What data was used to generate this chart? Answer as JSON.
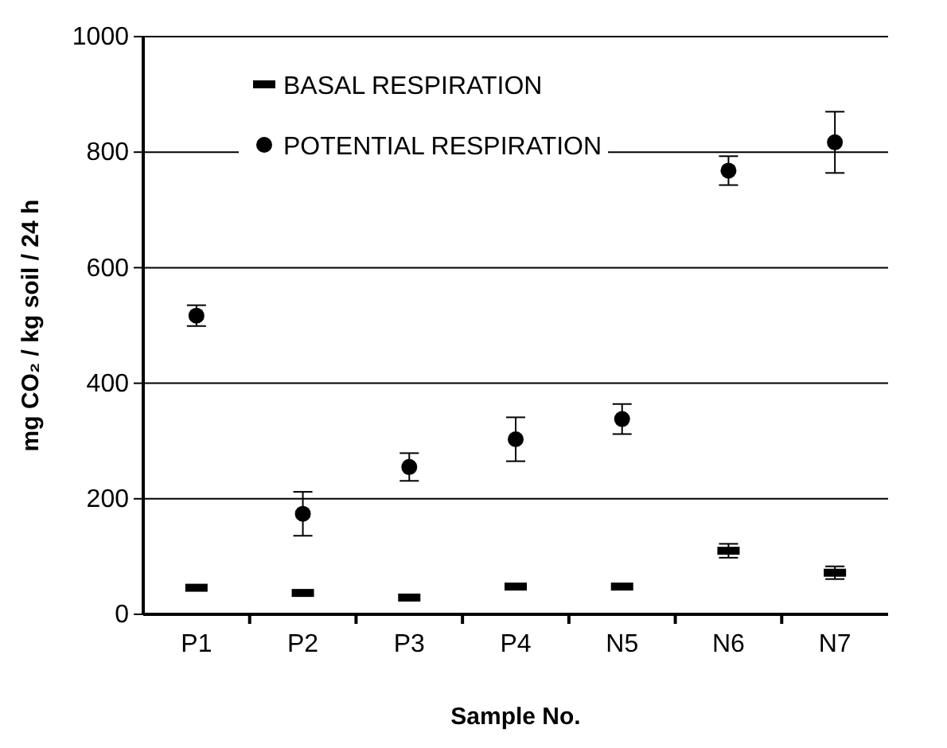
{
  "chart_data": {
    "type": "scatter",
    "xlabel": "Sample No.",
    "ylabel": "mg CO₂ / kg soil / 24 h",
    "categories": [
      "P1",
      "P2",
      "P3",
      "P4",
      "N5",
      "N6",
      "N7"
    ],
    "series": [
      {
        "name": "BASAL RESPIRATION",
        "color": "#000000",
        "marker": "square",
        "values": [
          46,
          37,
          29,
          48,
          48,
          110,
          72
        ],
        "errors": [
          null,
          null,
          null,
          null,
          null,
          12,
          11
        ]
      },
      {
        "name": "POTENTIAL RESPIRATION",
        "color": "#000000",
        "marker": "circle",
        "values": [
          517,
          174,
          255,
          303,
          338,
          768,
          817
        ],
        "errors": [
          18,
          38,
          24,
          38,
          26,
          25,
          53
        ]
      }
    ],
    "ylim": [
      0,
      1000
    ],
    "yticks": [
      0,
      200,
      400,
      600,
      800,
      1000
    ],
    "grid": "y",
    "legend": "top left"
  }
}
